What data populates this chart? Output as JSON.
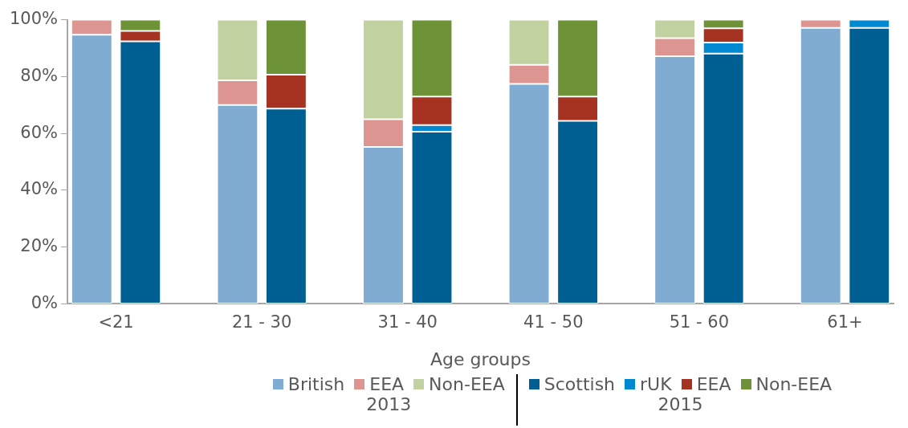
{
  "chart_data": {
    "type": "bar",
    "stacked": true,
    "xlabel": "Age groups",
    "categories": [
      "<21",
      null,
      null,
      "21 - 30",
      null,
      null,
      "31 - 40",
      null,
      null,
      "41 - 50",
      null,
      null,
      "51 - 60",
      null,
      null,
      "61+",
      null
    ],
    "ylim": [
      0,
      100
    ],
    "yticks": [
      {
        "value": 0,
        "label": "0%"
      },
      {
        "value": 20,
        "label": "20%"
      },
      {
        "value": 40,
        "label": "40%"
      },
      {
        "value": 60,
        "label": "60%"
      },
      {
        "value": 80,
        "label": "80%"
      },
      {
        "value": 100,
        "label": "100%"
      }
    ],
    "grid": false,
    "legend": "bottom",
    "annotations": [
      "2013",
      "2015"
    ],
    "series": [
      {
        "name": "British",
        "color": "#7facd0",
        "values": [
          94.7,
          null,
          null,
          70,
          null,
          null,
          55.2,
          null,
          null,
          77.4,
          null,
          null,
          87.2,
          null,
          null,
          97.1,
          null
        ]
      },
      {
        "name": "EEA",
        "color": "#dd9592",
        "values": [
          5.3,
          null,
          null,
          8.7,
          null,
          null,
          9.8,
          null,
          null,
          6.7,
          null,
          null,
          6.3,
          null,
          null,
          2.9,
          null
        ]
      },
      {
        "name": "Non-EEA",
        "color": "#c1d19f",
        "values": [
          0,
          null,
          null,
          21.3,
          null,
          null,
          35,
          null,
          null,
          15.9,
          null,
          null,
          6.5,
          null,
          null,
          0,
          null
        ]
      },
      {
        "name": "Scottish",
        "color": "#005f92",
        "values": [
          null,
          92.4,
          null,
          null,
          68.7,
          null,
          null,
          60.6,
          null,
          null,
          64.4,
          null,
          null,
          88.1,
          null,
          null,
          97.1
        ]
      },
      {
        "name": "rUK",
        "color": "#0089d0",
        "values": [
          null,
          0,
          null,
          null,
          0,
          null,
          null,
          2.3,
          null,
          null,
          0,
          null,
          null,
          3.9,
          null,
          null,
          2.9
        ]
      },
      {
        "name": "EEA",
        "color": "#a63222",
        "values": [
          null,
          3.7,
          null,
          null,
          12,
          null,
          null,
          10.1,
          null,
          null,
          8.6,
          null,
          null,
          5,
          null,
          null,
          0
        ]
      },
      {
        "name": "Non-EEA",
        "color": "#6e9237",
        "values": [
          null,
          3.9,
          null,
          null,
          19.3,
          null,
          null,
          27,
          null,
          null,
          27,
          null,
          null,
          3,
          null,
          null,
          0
        ]
      }
    ]
  }
}
